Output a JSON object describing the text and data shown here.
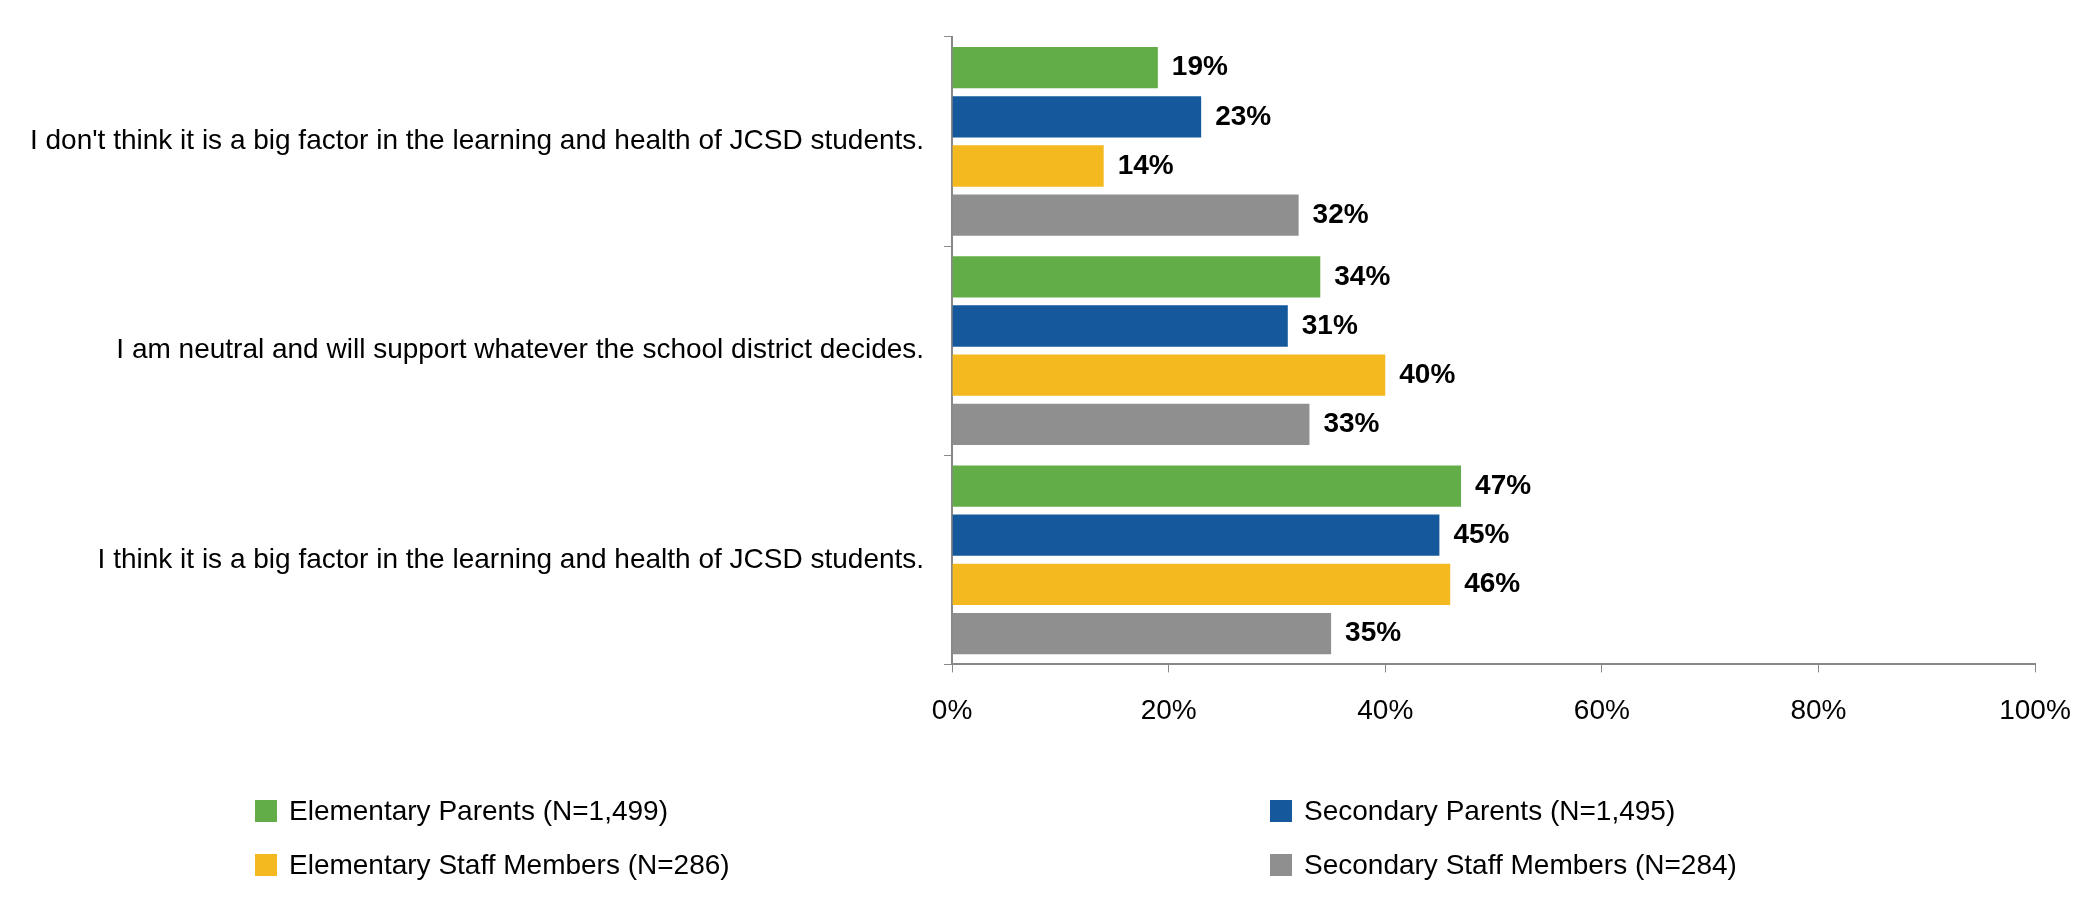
{
  "chart_data": {
    "type": "bar",
    "orientation": "horizontal",
    "categories": [
      "I don't think it is a big factor in the learning and health of JCSD students.",
      "I am neutral and will support whatever the school district decides.",
      "I think it is a big factor in the learning and health of JCSD students."
    ],
    "series": [
      {
        "name": "Elementary Parents (N=1,499)",
        "color": "#62ad47",
        "values": [
          19,
          34,
          47
        ],
        "value_labels": [
          "19%",
          "34%",
          "47%"
        ]
      },
      {
        "name": "Secondary Parents (N=1,495)",
        "color": "#15589c",
        "values": [
          23,
          31,
          45
        ],
        "value_labels": [
          "23%",
          "31%",
          "45%"
        ]
      },
      {
        "name": "Elementary Staff Members (N=286)",
        "color": "#f4b91f",
        "values": [
          14,
          40,
          46
        ],
        "value_labels": [
          "14%",
          "40%",
          "46%"
        ]
      },
      {
        "name": "Secondary Staff Members (N=284)",
        "color": "#8f8f8f",
        "values": [
          32,
          33,
          35
        ],
        "value_labels": [
          "32%",
          "33%",
          "35%"
        ]
      }
    ],
    "xlim": [
      0,
      100
    ],
    "xticks": [
      {
        "value": 0,
        "label": "0%"
      },
      {
        "value": 20,
        "label": "20%"
      },
      {
        "value": 40,
        "label": "40%"
      },
      {
        "value": 60,
        "label": "60%"
      },
      {
        "value": 80,
        "label": "80%"
      },
      {
        "value": 100,
        "label": "100%"
      }
    ],
    "grid": false,
    "legend": "bottom"
  }
}
